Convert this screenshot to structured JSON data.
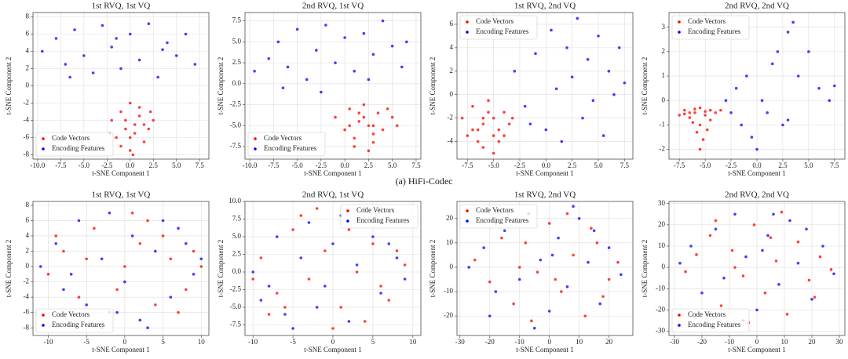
{
  "caption": "(a) HiFi-Codec",
  "chart_data": [
    {
      "type": "scatter",
      "title": "1st RVQ, 1st VQ",
      "xlabel": "t-SNE Component 1",
      "ylabel": "t-SNE Component 2",
      "grid": true,
      "legend": "lower left",
      "xlim": [
        -10.5,
        8.5
      ],
      "ylim": [
        -8.5,
        8.5
      ],
      "xticks": [
        {
          "value": -10,
          "label": "-10.0"
        },
        -7.5,
        {
          "value": -5,
          "label": "-5.0"
        },
        -2.5,
        {
          "value": 0,
          "label": "0.0"
        },
        2.5,
        {
          "value": 5,
          "label": "5.0"
        },
        7.5
      ],
      "yticks": [
        -8,
        -6,
        -4,
        -2,
        0,
        2,
        4,
        6,
        8
      ],
      "series": [
        {
          "name": "Code Vectors",
          "color": "#ff0000",
          "x": [
            -2,
            -1.5,
            -1,
            -0.5,
            0,
            0.5,
            1,
            1.5,
            2,
            2.5,
            -1,
            0,
            1,
            0.5,
            -0.5,
            1.5,
            0,
            -2.2,
            2.2,
            0.3
          ],
          "y": [
            -4,
            -6,
            -3,
            -5,
            -7.5,
            -4.5,
            -2.5,
            -6.5,
            -5,
            -4,
            -7,
            -2,
            -3.5,
            -5.5,
            -4,
            -4.5,
            -6,
            -5.5,
            -3,
            -8
          ]
        },
        {
          "name": "Encoding Features",
          "color": "#0000ff",
          "x": [
            -9.5,
            -8,
            -7,
            -6,
            -5,
            -4,
            -3,
            -2,
            -1,
            0,
            1,
            2,
            3,
            4,
            5,
            6,
            7,
            -6.5,
            -1.5,
            3.5
          ],
          "y": [
            4,
            5.5,
            2.5,
            6.5,
            3.5,
            1.5,
            7,
            4.5,
            2,
            6,
            3,
            7.2,
            1,
            5,
            3.5,
            6,
            2.5,
            1,
            5.5,
            4.2
          ]
        }
      ]
    },
    {
      "type": "scatter",
      "title": "2nd RVQ, 1st VQ",
      "xlabel": "t-SNE Component 1",
      "ylabel": "t-SNE Component 2",
      "grid": true,
      "legend": "lower left",
      "xlim": [
        -10.5,
        8
      ],
      "ylim": [
        -9,
        8.5
      ],
      "xticks": [
        {
          "value": -10,
          "label": "-10.0"
        },
        -7.5,
        {
          "value": -5,
          "label": "-5.0"
        },
        -2.5,
        {
          "value": 0,
          "label": "0.0"
        },
        2.5,
        {
          "value": 5,
          "label": "5.0"
        },
        7.5
      ],
      "yticks": [
        -7.5,
        {
          "value": -5,
          "label": "-5.0"
        },
        -2.5,
        {
          "value": 0,
          "label": "0.0"
        },
        2.5,
        {
          "value": 5,
          "label": "5.0"
        },
        7.5
      ],
      "series": [
        {
          "name": "Code Vectors",
          "color": "#ff0000",
          "x": [
            -1,
            0,
            0.5,
            1,
            1.5,
            2,
            2.5,
            3,
            3.5,
            4,
            5,
            5.5,
            1,
            2,
            3,
            0.5,
            4.5,
            2.5,
            1.5,
            3
          ],
          "y": [
            -4,
            -5.5,
            -3,
            -6.5,
            -4.5,
            -2.5,
            -5,
            -7,
            -3.5,
            -5.5,
            -4,
            -5,
            -7.5,
            -4,
            -6,
            -5,
            -3,
            -8,
            -3.5,
            -5
          ]
        },
        {
          "name": "Encoding Features",
          "color": "#0000ff",
          "x": [
            -9.5,
            -8,
            -7,
            -6,
            -5,
            -4,
            -3,
            -2,
            -1,
            0,
            1,
            2,
            3,
            4,
            5,
            6,
            6.5,
            -6.5,
            -2.5,
            2.5
          ],
          "y": [
            1.5,
            3,
            5,
            2,
            6.5,
            0.5,
            4,
            7,
            2.5,
            5.5,
            1.5,
            6,
            3.5,
            7.5,
            4.5,
            2,
            5,
            -0.5,
            -1,
            0.5
          ]
        }
      ]
    },
    {
      "type": "scatter",
      "title": "1st RVQ, 2nd VQ",
      "xlabel": "t-SNE Component 1",
      "ylabel": "t-SNE Component 2",
      "grid": true,
      "legend": "upper left",
      "xlim": [
        -8.5,
        8.3
      ],
      "ylim": [
        -5.5,
        7
      ],
      "xticks": [
        -7.5,
        {
          "value": -5,
          "label": "-5.0"
        },
        -2.5,
        {
          "value": 0,
          "label": "0.0"
        },
        2.5,
        {
          "value": 5,
          "label": "5.0"
        },
        7.5
      ],
      "yticks": [
        -4,
        -2,
        0,
        2,
        4,
        6
      ],
      "series": [
        {
          "name": "Code Vectors",
          "color": "#ff0000",
          "x": [
            -8,
            -7.5,
            -7,
            -6.5,
            -6,
            -5.5,
            -5,
            -4.5,
            -4,
            -3.5,
            -6,
            -5,
            -7,
            -4.5,
            -5.5,
            -6.5,
            -4,
            -5,
            -6,
            -3.2
          ],
          "y": [
            -2,
            -3.5,
            -1,
            -4,
            -2.5,
            -0.5,
            -5,
            -3,
            -1.5,
            -2.5,
            -4.5,
            -2,
            -3,
            -4,
            -1.5,
            -3,
            -3.5,
            -3.5,
            -2,
            -2
          ]
        },
        {
          "name": "Encoding Features",
          "color": "#0000ff",
          "x": [
            -3,
            -2,
            -1,
            0,
            0.5,
            1,
            1.5,
            2,
            2.5,
            3,
            3.5,
            4,
            4.5,
            5,
            5.5,
            6,
            6.5,
            7,
            7.5,
            -1.5
          ],
          "y": [
            2,
            -1,
            3.5,
            -3,
            5.5,
            0.5,
            -4,
            4,
            1.5,
            6.5,
            -2,
            3,
            -0.5,
            5,
            -3.5,
            2,
            0,
            4,
            1,
            -2.5
          ]
        }
      ]
    },
    {
      "type": "scatter",
      "title": "2nd RVQ, 2nd VQ",
      "xlabel": "t-SNE Component 1",
      "ylabel": "t-SNE Component 2",
      "grid": true,
      "legend": "upper left",
      "xlim": [
        -8.5,
        8.5
      ],
      "ylim": [
        -2.4,
        3.6
      ],
      "xticks": [
        -7.5,
        {
          "value": -5,
          "label": "-5.0"
        },
        -2.5,
        {
          "value": 0,
          "label": "0.0"
        },
        2.5,
        {
          "value": 5,
          "label": "5.0"
        },
        7.5
      ],
      "yticks": [
        -2,
        -1,
        0,
        1,
        2,
        3
      ],
      "series": [
        {
          "name": "Code Vectors",
          "color": "#ff0000",
          "x": [
            -7.5,
            -7,
            -6.5,
            -6,
            -5.5,
            -5,
            -4.5,
            -4,
            -7,
            -6,
            -5,
            -6.5,
            -5.5,
            -4.5,
            -5.8,
            -5.2,
            -5.5,
            -4.8,
            -6.2,
            -3.5
          ],
          "y": [
            -0.6,
            -0.4,
            -0.7,
            -0.5,
            -0.3,
            -0.6,
            -0.4,
            -0.5,
            -0.55,
            -0.35,
            -0.45,
            -0.5,
            -1,
            -0.8,
            -1.3,
            -1.6,
            -2,
            -1.2,
            -0.9,
            -0.4
          ]
        },
        {
          "name": "Encoding Features",
          "color": "#0000ff",
          "x": [
            -3,
            -2.5,
            -2,
            -1.5,
            -1,
            -0.5,
            0,
            0.5,
            1,
            1.5,
            2,
            2.5,
            3,
            3.5,
            4,
            5,
            6,
            7,
            7.5,
            3
          ],
          "y": [
            0,
            -0.5,
            0.5,
            -1,
            1,
            -1.5,
            -2,
            0,
            -0.5,
            1.5,
            2,
            -1,
            2.8,
            3.2,
            1,
            2,
            0.5,
            0,
            0.6,
            -0.8
          ]
        }
      ]
    },
    {
      "type": "scatter",
      "title": "1st RVQ, 1st VQ",
      "xlabel": "t-SNE Component 1",
      "ylabel": "t-SNE Component 2",
      "grid": true,
      "legend": "lower left",
      "xlim": [
        -12,
        11
      ],
      "ylim": [
        -9,
        8.5
      ],
      "xticks": [
        -10,
        -5,
        0,
        5,
        10
      ],
      "yticks": [
        -8,
        -6,
        -4,
        -2,
        0,
        2,
        4,
        6,
        8
      ],
      "series": [
        {
          "name": "Code Vectors",
          "color": "#ff0000",
          "x": [
            -10,
            -8,
            -6,
            -4,
            -2,
            0,
            2,
            4,
            6,
            8,
            10,
            -9,
            -5,
            -1,
            3,
            7,
            9,
            -3,
            5,
            1
          ],
          "y": [
            -1,
            2,
            -4,
            5,
            -6,
            0,
            3,
            -5,
            1,
            -3,
            0,
            4,
            1,
            -3,
            6,
            -6,
            2,
            -8,
            4,
            7
          ]
        },
        {
          "name": "Encoding Features",
          "color": "#0000ff",
          "x": [
            -11,
            -9,
            -8,
            -6,
            -5,
            -3,
            -2,
            0,
            1,
            2,
            4,
            5,
            6,
            8,
            9,
            10,
            -7,
            -1,
            3,
            7
          ],
          "y": [
            0,
            3,
            -3,
            6,
            -5,
            1,
            7,
            -2,
            4,
            -7,
            2,
            6,
            -4,
            3,
            -1,
            1,
            -1,
            -6,
            -8,
            5
          ]
        }
      ]
    },
    {
      "type": "scatter",
      "title": "2nd RVQ, 1st VQ",
      "xlabel": "t-SNE Component 1",
      "ylabel": "t-SNE Component 2",
      "grid": true,
      "legend": "upper right",
      "xlim": [
        -11,
        11
      ],
      "ylim": [
        -9,
        10
      ],
      "xticks": [
        -10,
        -5,
        0,
        5,
        10
      ],
      "yticks": [
        -7.5,
        {
          "value": -5,
          "label": "-5.0"
        },
        -2.5,
        {
          "value": 0,
          "label": "0.0"
        },
        2.5,
        {
          "value": 5,
          "label": "5.0"
        },
        7.5,
        {
          "value": 10,
          "label": "10.0"
        }
      ],
      "series": [
        {
          "name": "Code Vectors",
          "color": "#ff0000",
          "x": [
            -9,
            -7,
            -5,
            -3,
            -1,
            1,
            3,
            5,
            7,
            9,
            -8,
            -4,
            0,
            4,
            8,
            -6,
            2,
            6,
            -2,
            -10
          ],
          "y": [
            2,
            -3,
            6,
            -1,
            3,
            -5,
            0,
            4,
            -4,
            1,
            -6,
            8,
            -8,
            -7,
            3,
            -5,
            6,
            -2,
            9,
            -1
          ]
        },
        {
          "name": "Encoding Features",
          "color": "#0000ff",
          "x": [
            -10,
            -9,
            -7,
            -6,
            -4,
            -3,
            -1,
            0,
            2,
            3,
            5,
            6,
            8,
            9,
            -8,
            -5,
            1,
            4,
            7,
            -2
          ],
          "y": [
            0,
            -4,
            5,
            -6,
            2,
            7,
            -2,
            4,
            -7,
            1,
            5,
            -3,
            2,
            -1,
            -2,
            -8,
            8,
            9,
            4,
            -5
          ]
        }
      ]
    },
    {
      "type": "scatter",
      "title": "1st RVQ, 2nd VQ",
      "xlabel": "t-SNE Component 1",
      "ylabel": "t-SNE Component 2",
      "grid": true,
      "legend": "upper left",
      "xlim": [
        -31,
        28
      ],
      "ylim": [
        -28,
        27
      ],
      "xticks": [
        -30,
        -20,
        -10,
        0,
        10,
        20
      ],
      "yticks": [
        -20,
        -10,
        0,
        10,
        20
      ],
      "series": [
        {
          "name": "Code Vectors",
          "color": "#ff0000",
          "x": [
            -25,
            -20,
            -16,
            -12,
            -8,
            -4,
            0,
            4,
            8,
            12,
            16,
            20,
            23,
            -18,
            -6,
            6,
            18,
            -10,
            2,
            14
          ],
          "y": [
            3,
            -6,
            12,
            -15,
            10,
            -2,
            18,
            -10,
            5,
            -20,
            10,
            -5,
            2,
            18,
            -22,
            22,
            -12,
            0,
            -5,
            16
          ]
        },
        {
          "name": "Encoding Features",
          "color": "#0000ff",
          "x": [
            -27,
            -22,
            -18,
            -15,
            -10,
            -7,
            -3,
            0,
            3,
            6,
            10,
            13,
            17,
            20,
            24,
            -20,
            -5,
            8,
            15,
            1
          ],
          "y": [
            0,
            8,
            -10,
            15,
            -5,
            22,
            3,
            -18,
            12,
            -8,
            20,
            2,
            -15,
            8,
            -3,
            -20,
            -25,
            25,
            15,
            5
          ]
        }
      ]
    },
    {
      "type": "scatter",
      "title": "2nd RVQ, 2nd VQ",
      "xlabel": "t-SNE Component 1",
      "ylabel": "t-SNE Component 2",
      "grid": true,
      "legend": "lower left",
      "xlim": [
        -32,
        32
      ],
      "ylim": [
        -32,
        31
      ],
      "xticks": [
        -30,
        -20,
        -10,
        0,
        10,
        20,
        30
      ],
      "yticks": [
        -30,
        -20,
        -10,
        0,
        10,
        20,
        30
      ],
      "series": [
        {
          "name": "Code Vectors",
          "color": "#ff0000",
          "x": [
            -26,
            -22,
            -17,
            -13,
            -9,
            -5,
            -1,
            3,
            7,
            11,
            15,
            19,
            23,
            27,
            -15,
            -3,
            9,
            21,
            -8,
            5
          ],
          "y": [
            -2,
            6,
            15,
            -18,
            8,
            -4,
            20,
            -12,
            3,
            -22,
            12,
            -6,
            5,
            -1,
            22,
            -26,
            26,
            -14,
            0,
            14
          ]
        },
        {
          "name": "Encoding Features",
          "color": "#0000ff",
          "x": [
            -28,
            -24,
            -20,
            -15,
            -12,
            -8,
            -4,
            0,
            4,
            8,
            12,
            15,
            20,
            24,
            28,
            -18,
            -5,
            6,
            18,
            2
          ],
          "y": [
            2,
            10,
            -12,
            18,
            -5,
            25,
            5,
            -20,
            15,
            -8,
            22,
            2,
            -15,
            10,
            -3,
            -22,
            -25,
            25,
            18,
            8
          ]
        }
      ]
    }
  ]
}
